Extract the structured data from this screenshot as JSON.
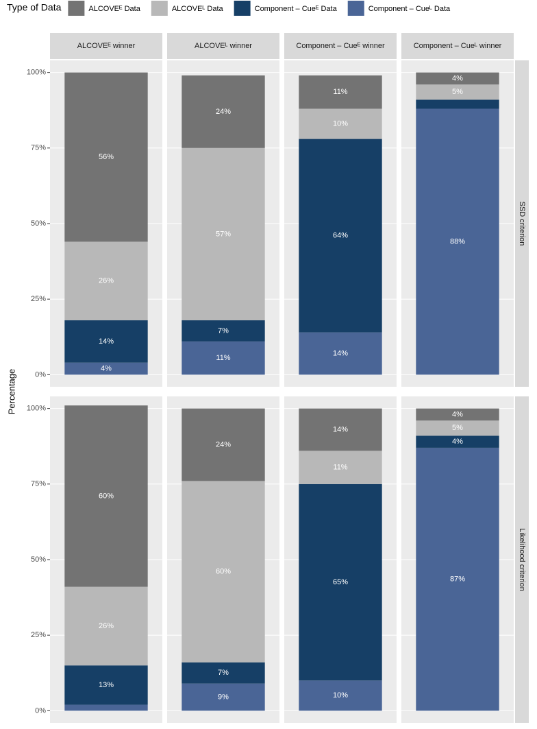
{
  "chart_data": {
    "type": "bar",
    "stacked": true,
    "legend_title": "Type of Data",
    "legend_position": "top",
    "ylabel": "Percentage",
    "facet_columns": [
      "ALCOVEᴱ winner",
      "ALCOVEᴸ winner",
      "Component – Cueᴱ winner",
      "Component – Cueᴸ winner"
    ],
    "facet_rows": [
      "SSD criterion",
      "Likelihood criterion"
    ],
    "ylim": [
      -4,
      104
    ],
    "yticks": [
      {
        "value": 0,
        "label": "0%"
      },
      {
        "value": 25,
        "label": "25%"
      },
      {
        "value": 50,
        "label": "50%"
      },
      {
        "value": 75,
        "label": "75%"
      },
      {
        "value": 100,
        "label": "100%"
      }
    ],
    "grid": true,
    "series": [
      {
        "name": "ALCOVEᴱ Data",
        "color": "#737373",
        "values": [
          [
            56,
            24,
            11,
            4
          ],
          [
            60,
            24,
            14,
            4
          ]
        ],
        "value_labels": [
          [
            "56%",
            "24%",
            "11%",
            "4%"
          ],
          [
            "60%",
            "24%",
            "14%",
            "4%"
          ]
        ]
      },
      {
        "name": "ALCOVEᴸ Data",
        "color": "#b8b8b8",
        "values": [
          [
            26,
            57,
            10,
            5
          ],
          [
            26,
            60,
            11,
            5
          ]
        ],
        "value_labels": [
          [
            "26%",
            "57%",
            "10%",
            "5%"
          ],
          [
            "26%",
            "60%",
            "11%",
            "5%"
          ]
        ]
      },
      {
        "name": "Component – Cueᴱ Data",
        "color": "#163f66",
        "values": [
          [
            14,
            7,
            64,
            3
          ],
          [
            13,
            7,
            65,
            4
          ]
        ],
        "value_labels": [
          [
            "14%",
            "7%",
            "64%",
            null
          ],
          [
            "13%",
            "7%",
            "65%",
            "4%"
          ]
        ]
      },
      {
        "name": "Component – Cueᴸ Data",
        "color": "#4a6596",
        "values": [
          [
            4,
            11,
            14,
            88
          ],
          [
            2,
            9,
            10,
            87
          ]
        ],
        "value_labels": [
          [
            "4%",
            "11%",
            "14%",
            "88%"
          ],
          [
            null,
            "9%",
            "10%",
            "87%"
          ]
        ]
      }
    ]
  }
}
